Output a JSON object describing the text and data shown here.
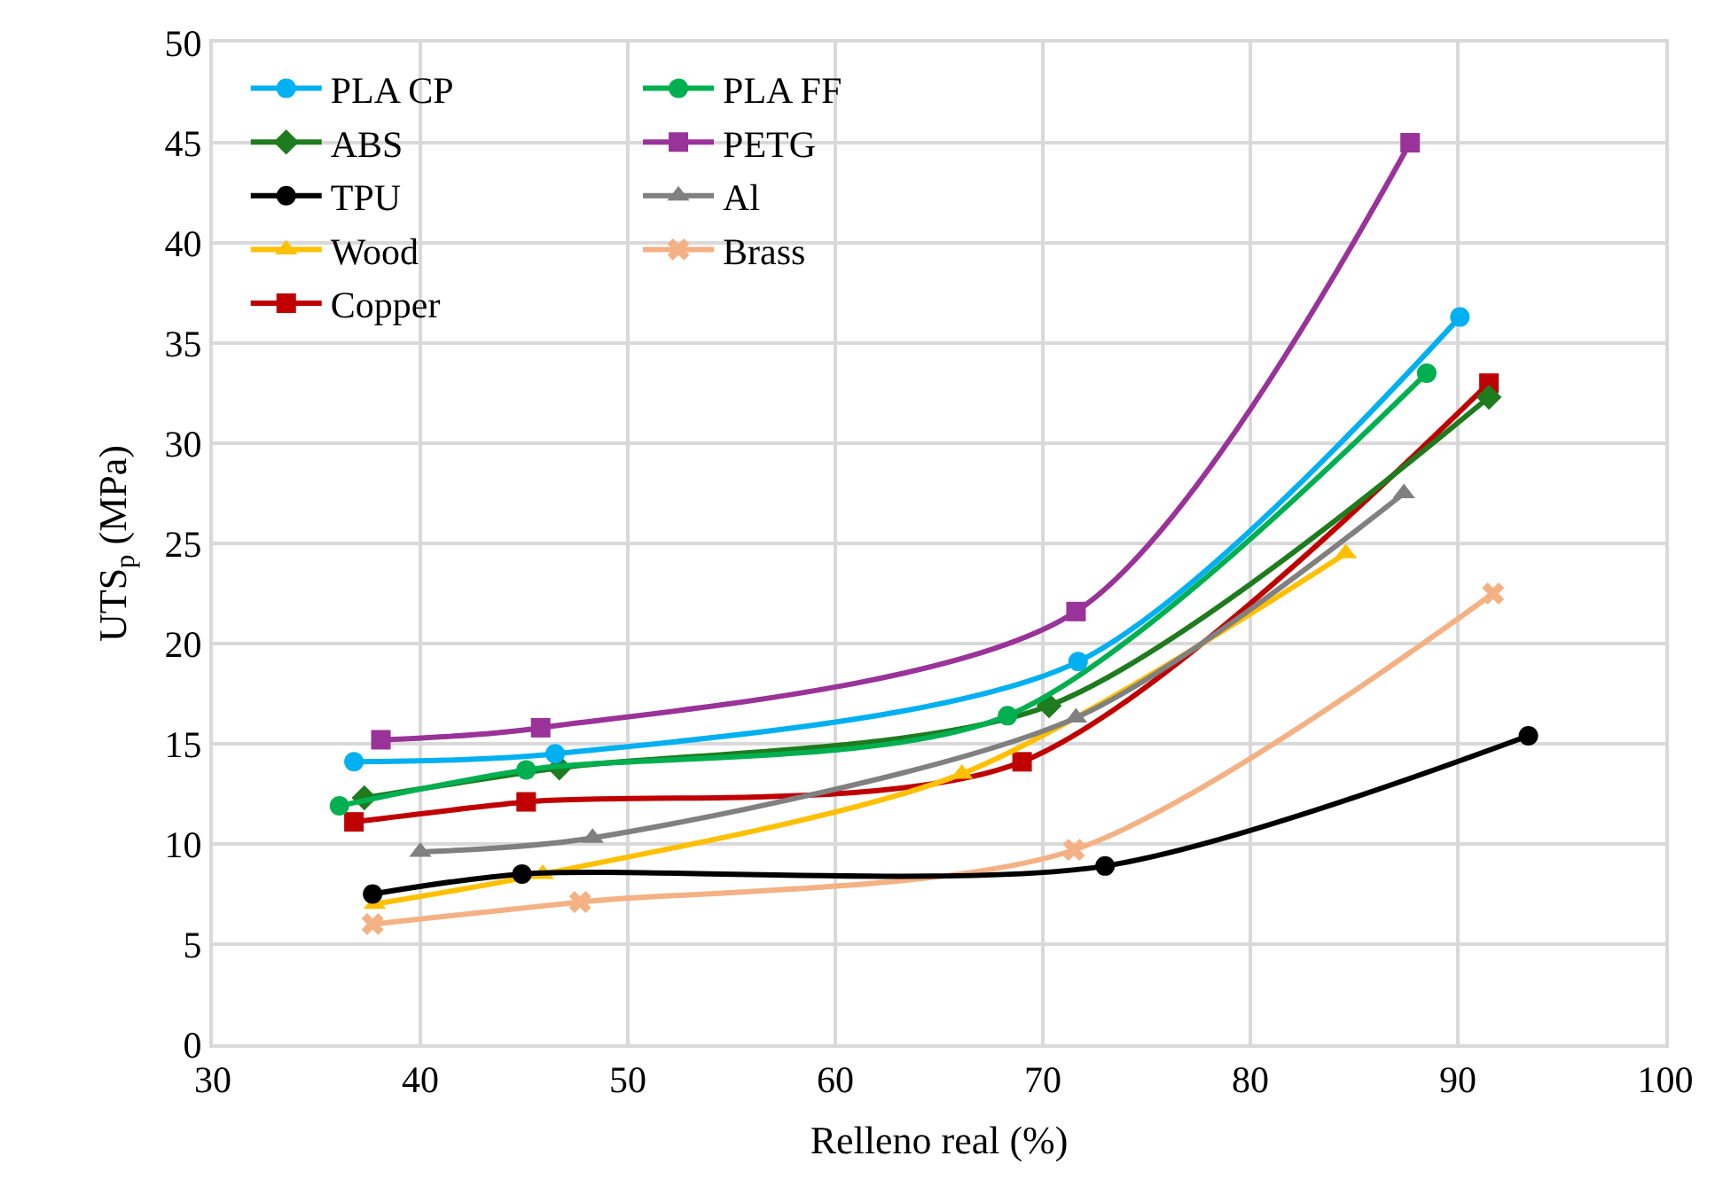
{
  "chart_data": {
    "type": "line",
    "xlabel": "Relleno real (%)",
    "ylabel": "UTS$_{p}$ (MPa)",
    "xlim": [
      30,
      100
    ],
    "xticks": [
      30,
      40,
      50,
      60,
      70,
      80,
      90,
      100
    ],
    "ylim": [
      0,
      50
    ],
    "yticks": [
      0,
      5,
      10,
      15,
      20,
      25,
      30,
      35,
      40,
      45,
      50
    ],
    "grid": true,
    "legend": "top left",
    "line_style": "solid",
    "series": [
      {
        "name": "PLA CP",
        "color": "#00b0f0",
        "marker": "circle",
        "x": [
          36.8,
          46.5,
          71.7,
          90.1
        ],
        "values": [
          14.1,
          14.5,
          19.1,
          36.3
        ]
      },
      {
        "name": "PLA FF",
        "color": "#00b050",
        "marker": "circle",
        "x": [
          36.1,
          45.1,
          68.3,
          88.5
        ],
        "values": [
          11.9,
          13.7,
          16.4,
          33.5
        ]
      },
      {
        "name": "ABS",
        "color": "#1e7b1e",
        "marker": "diamond",
        "x": [
          37.3,
          46.7,
          70.3,
          91.5
        ],
        "values": [
          12.3,
          13.8,
          16.9,
          32.3
        ]
      },
      {
        "name": "PETG",
        "color": "#993399",
        "marker": "square",
        "x": [
          38.1,
          45.8,
          71.6,
          87.7
        ],
        "values": [
          15.2,
          15.8,
          21.6,
          45.0
        ]
      },
      {
        "name": "TPU",
        "color": "#000000",
        "marker": "circle",
        "x": [
          37.7,
          44.9,
          73.0,
          93.4
        ],
        "values": [
          7.5,
          8.5,
          8.9,
          15.4
        ]
      },
      {
        "name": "Al",
        "color": "#808080",
        "marker": "triangle",
        "x": [
          40.0,
          48.3,
          71.6,
          87.4
        ],
        "values": [
          9.6,
          10.3,
          16.3,
          27.5
        ]
      },
      {
        "name": "Wood",
        "color": "#ffc000",
        "marker": "triangle",
        "x": [
          37.8,
          45.9,
          66.1,
          84.6
        ],
        "values": [
          7.0,
          8.5,
          13.5,
          24.5
        ]
      },
      {
        "name": "Brass",
        "color": "#f4b183",
        "marker": "cross",
        "x": [
          37.7,
          47.7,
          71.5,
          91.7
        ],
        "values": [
          6.0,
          7.1,
          9.7,
          22.5
        ]
      },
      {
        "name": "Copper",
        "color": "#c00000",
        "marker": "square",
        "x": [
          36.8,
          45.1,
          69.0,
          91.5
        ],
        "values": [
          11.1,
          12.1,
          14.1,
          33.0
        ]
      }
    ]
  }
}
